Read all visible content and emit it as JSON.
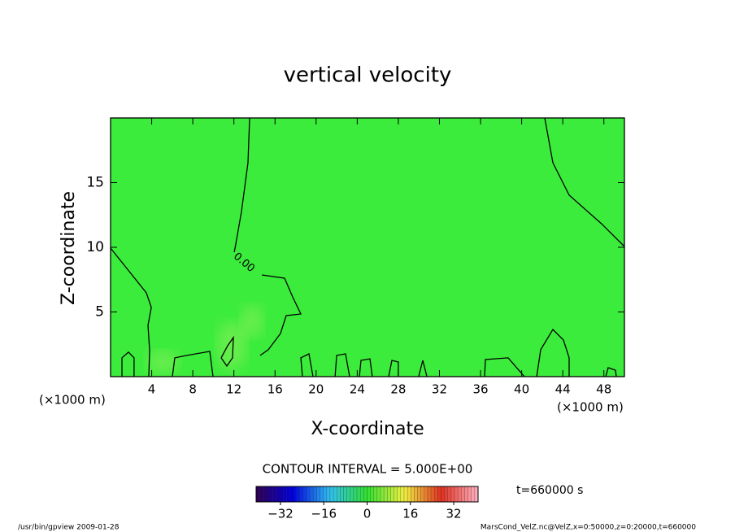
{
  "chart_data": {
    "type": "contour",
    "title": "vertical velocity",
    "x_label": "X-coordinate",
    "y_label": "Z-coordinate",
    "x_unit_label": "(×1000 m)",
    "y_unit_label": "(×1000 m)",
    "xlim": [
      0,
      50
    ],
    "ylim": [
      0,
      20
    ],
    "xticks": [
      4,
      8,
      12,
      16,
      20,
      24,
      28,
      32,
      36,
      40,
      44,
      48
    ],
    "yticks": [
      5,
      10,
      15
    ],
    "field_color": "#3cec3c",
    "contour_label": {
      "value": 0,
      "label": "0.00"
    },
    "contours": [
      {
        "x": [
          0,
          1.9,
          3.48,
          3.96,
          3.64,
          3.8,
          3.72
        ],
        "y": [
          9.94,
          8.05,
          6.48,
          5.35,
          3.96,
          2.08,
          0
        ]
      },
      {
        "x": [
          13.53,
          13.37,
          12.74,
          12.18,
          12.03,
          null,
          14.72,
          16.93,
          17.72,
          18.51,
          17.09,
          16.53,
          15.35,
          14.56
        ],
        "y": [
          20,
          16.54,
          12.77,
          10.25,
          9.62,
          null,
          7.86,
          7.61,
          6.16,
          4.84,
          4.72,
          3.33,
          2.08,
          1.64
        ]
      },
      {
        "x": [
          42.25,
          43.04,
          44.62,
          47.78,
          50
        ],
        "y": [
          20,
          16.54,
          14.03,
          11.82,
          10.06
        ]
      },
      {
        "x": [
          10.76,
          11.39,
          11.95,
          11.87,
          11.31,
          10.76
        ],
        "y": [
          1.45,
          2.39,
          3.02,
          1.45,
          0.82,
          1.45
        ]
      },
      {
        "x": [
          1.11,
          1.11,
          1.74,
          2.29,
          2.29
        ],
        "y": [
          0,
          1.45,
          1.89,
          1.45,
          0
        ]
      },
      {
        "x": [
          6.01,
          6.25,
          7.44,
          9.65,
          9.97
        ],
        "y": [
          0,
          1.45,
          1.64,
          1.95,
          0
        ]
      },
      {
        "x": [
          18.67,
          18.51,
          19.3,
          19.7
        ],
        "y": [
          0,
          1.45,
          1.76,
          0
        ]
      },
      {
        "x": [
          21.84,
          22.0,
          22.86,
          23.26
        ],
        "y": [
          0,
          1.64,
          1.76,
          0
        ]
      },
      {
        "x": [
          24.21,
          24.37,
          25.24,
          25.47
        ],
        "y": [
          0,
          1.26,
          1.38,
          0
        ]
      },
      {
        "x": [
          27.06,
          27.37,
          28.0,
          28.0
        ],
        "y": [
          0,
          1.26,
          1.13,
          0
        ]
      },
      {
        "x": [
          29.98,
          30.38,
          30.78
        ],
        "y": [
          0,
          1.26,
          0
        ]
      },
      {
        "x": [
          36.39,
          36.47,
          38.69,
          40.27
        ],
        "y": [
          0,
          1.32,
          1.45,
          0
        ]
      },
      {
        "x": [
          41.46,
          41.85,
          43.04,
          44.07,
          44.62,
          44.62
        ],
        "y": [
          0,
          2.08,
          3.65,
          2.83,
          1.45,
          0
        ]
      },
      {
        "x": [
          48.18,
          48.42,
          49.13,
          49.21
        ],
        "y": [
          0,
          0.69,
          0.5,
          0
        ]
      }
    ],
    "contour_interval_text": "CONTOUR INTERVAL = 5.000E+00",
    "time_text": "t=660000 s",
    "clim": [
      -41,
      41
    ],
    "colormap": [
      "#300050",
      "#0000e0",
      "#30c0f0",
      "#30e030",
      "#f0f040",
      "#e03020",
      "#ffb0c0"
    ],
    "cticks": [
      {
        "value": -32,
        "label": "−32"
      },
      {
        "value": -16,
        "label": "−16"
      },
      0,
      16,
      32
    ],
    "footer_left": "/usr/bin/gpview  2009-01-28",
    "footer_right": "MarsCond_VelZ.nc@VelZ,x=0:50000,z=0:20000,t=660000"
  }
}
